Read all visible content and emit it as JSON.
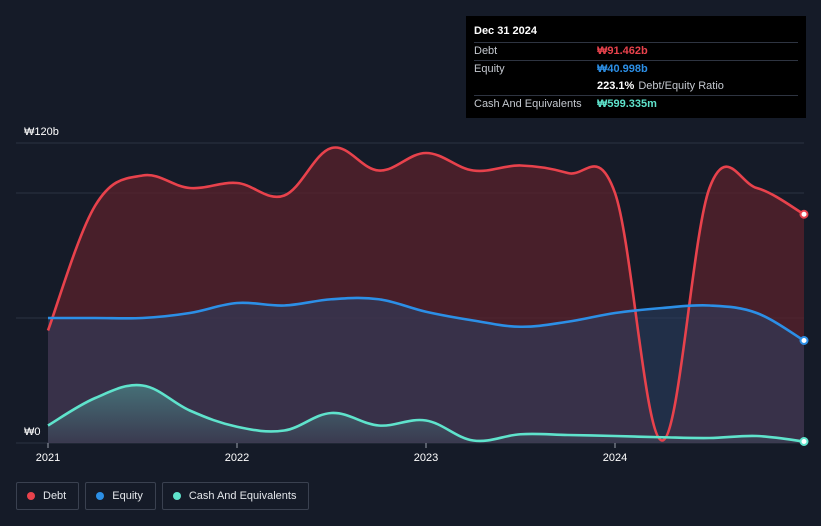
{
  "chart_data": {
    "type": "area",
    "title": "",
    "xlabel": "",
    "ylabel": "",
    "ylim": [
      0,
      120
    ],
    "y_unit": "b",
    "y_tick_labels": [
      {
        "value": 120,
        "label": "₩120b"
      },
      {
        "value": 0,
        "label": "₩0"
      }
    ],
    "x_ticks": [
      {
        "value": 2021.0,
        "label": "2021"
      },
      {
        "value": 2022.0,
        "label": "2022"
      },
      {
        "value": 2023.0,
        "label": "2023"
      },
      {
        "value": 2024.0,
        "label": "2024"
      }
    ],
    "xlim": [
      2021.0,
      2025.0
    ],
    "grid": true,
    "legend_position": "bottom-left",
    "series": [
      {
        "name": "Debt",
        "color": "#e8424c",
        "points": [
          [
            2021.0,
            45
          ],
          [
            2021.25,
            95
          ],
          [
            2021.5,
            107
          ],
          [
            2021.75,
            102
          ],
          [
            2022.0,
            104
          ],
          [
            2022.25,
            99
          ],
          [
            2022.5,
            118
          ],
          [
            2022.75,
            109
          ],
          [
            2023.0,
            116
          ],
          [
            2023.25,
            109
          ],
          [
            2023.5,
            111
          ],
          [
            2023.75,
            108
          ],
          [
            2024.0,
            100
          ],
          [
            2024.25,
            1
          ],
          [
            2024.5,
            102
          ],
          [
            2024.75,
            102
          ],
          [
            2025.0,
            91.5
          ]
        ]
      },
      {
        "name": "Equity",
        "color": "#2c8fe6",
        "points": [
          [
            2021.0,
            50
          ],
          [
            2021.25,
            50
          ],
          [
            2021.5,
            50
          ],
          [
            2021.75,
            52
          ],
          [
            2022.0,
            56
          ],
          [
            2022.25,
            55
          ],
          [
            2022.5,
            57.5
          ],
          [
            2022.75,
            57.5
          ],
          [
            2023.0,
            52.5
          ],
          [
            2023.25,
            49
          ],
          [
            2023.5,
            46.5
          ],
          [
            2023.75,
            48.5
          ],
          [
            2024.0,
            52
          ],
          [
            2024.25,
            54
          ],
          [
            2024.5,
            55
          ],
          [
            2024.75,
            52
          ],
          [
            2025.0,
            41
          ]
        ]
      },
      {
        "name": "Cash And Equivalents",
        "color": "#5fe3cc",
        "points": [
          [
            2021.0,
            7
          ],
          [
            2021.25,
            18
          ],
          [
            2021.5,
            23
          ],
          [
            2021.75,
            13
          ],
          [
            2022.0,
            6.5
          ],
          [
            2022.25,
            5
          ],
          [
            2022.5,
            12
          ],
          [
            2022.75,
            7
          ],
          [
            2023.0,
            9
          ],
          [
            2023.25,
            1
          ],
          [
            2023.5,
            3.5
          ],
          [
            2023.75,
            3.2
          ],
          [
            2024.0,
            2.8
          ],
          [
            2024.25,
            2.3
          ],
          [
            2024.5,
            2.0
          ],
          [
            2024.75,
            2.8
          ],
          [
            2025.0,
            0.6
          ]
        ]
      }
    ]
  },
  "tooltip": {
    "date": "Dec 31 2024",
    "rows": [
      {
        "label": "Debt",
        "value": "₩91.462b",
        "color": "#e8424c",
        "extra": ""
      },
      {
        "label": "Equity",
        "value": "₩40.998b",
        "color": "#2c8fe6",
        "extra": ""
      },
      {
        "label": "",
        "value": "223.1%",
        "color": "#ffffff",
        "extra": "Debt/Equity Ratio"
      },
      {
        "label": "Cash And Equivalents",
        "value": "₩599.335m",
        "color": "#5fe3cc",
        "extra": ""
      }
    ]
  },
  "legend": [
    {
      "label": "Debt",
      "color": "#e8424c"
    },
    {
      "label": "Equity",
      "color": "#2c8fe6"
    },
    {
      "label": "Cash And Equivalents",
      "color": "#5fe3cc"
    }
  ]
}
